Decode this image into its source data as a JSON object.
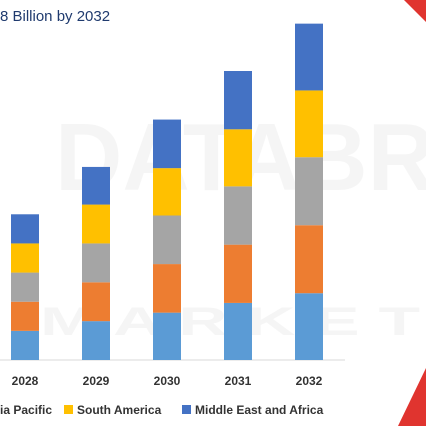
{
  "chart_data": {
    "type": "bar",
    "stacked": true,
    "subtitle": "8 Billion by 2032",
    "categories": [
      "2028",
      "2029",
      "2030",
      "2031",
      "2032"
    ],
    "series": [
      {
        "name": "",
        "color": "#5b9bd5",
        "values": [
          24,
          32,
          39,
          47,
          55
        ]
      },
      {
        "name": "",
        "color": "#ed7d31",
        "values": [
          24,
          32,
          40,
          48,
          56
        ]
      },
      {
        "name": "",
        "color": "#a5a5a5",
        "values": [
          24,
          32,
          40,
          48,
          56
        ]
      },
      {
        "name": "South America",
        "color": "#ffc000",
        "values": [
          24,
          32,
          39,
          47,
          55
        ]
      },
      {
        "name": "Middle East and Africa",
        "color": "#4472c4",
        "values": [
          24,
          31,
          40,
          48,
          55
        ]
      }
    ],
    "legend": {
      "position": "bottom",
      "entries": [
        {
          "label": "ia Pacific",
          "color": "#5b9bd5",
          "show_swatch": false
        },
        {
          "label": "South America",
          "color": "#ffc000",
          "show_swatch": true
        },
        {
          "label": "Middle East and Africa",
          "color": "#4472c4",
          "show_swatch": true
        }
      ]
    },
    "xlabel": "",
    "ylabel": "",
    "ylim": [
      0,
      280
    ],
    "grid": false
  },
  "decor": {
    "watermark_top": "DATABR",
    "watermark_bottom": "M A R K E T",
    "accent_color": "#e0342f"
  }
}
